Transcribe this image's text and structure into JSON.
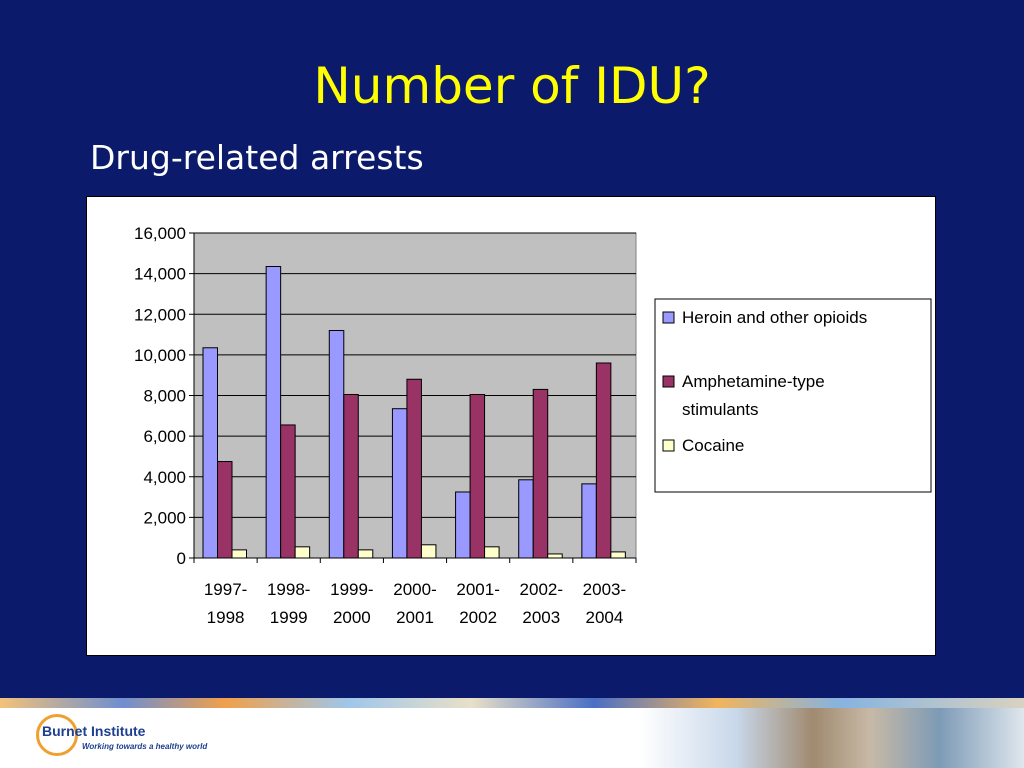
{
  "slide": {
    "title": "Number of IDU?",
    "subtitle": "Drug-related arrests"
  },
  "chart_data": {
    "type": "bar",
    "categories": [
      [
        "1997-",
        "1998"
      ],
      [
        "1998-",
        "1999"
      ],
      [
        "1999-",
        "2000"
      ],
      [
        "2000-",
        "2001"
      ],
      [
        "2001-",
        "2002"
      ],
      [
        "2002-",
        "2003"
      ],
      [
        "2003-",
        "2004"
      ]
    ],
    "series": [
      {
        "name": "Heroin and other opioids",
        "color": "#9999ff",
        "values": [
          10350,
          14350,
          11200,
          7350,
          3250,
          3850,
          3650
        ]
      },
      {
        "name": [
          "Amphetamine-type",
          "stimulants"
        ],
        "color": "#993366",
        "values": [
          4750,
          6550,
          8050,
          8800,
          8050,
          8300,
          9600
        ]
      },
      {
        "name": "Cocaine",
        "color": "#ffffcc",
        "values": [
          400,
          550,
          400,
          650,
          550,
          200,
          300
        ]
      }
    ],
    "y_ticks": [
      "0",
      "2,000",
      "4,000",
      "6,000",
      "8,000",
      "10,000",
      "12,000",
      "14,000",
      "16,000"
    ],
    "ylim": [
      0,
      16000
    ],
    "grid": true,
    "plot_background": "#c0c0c0",
    "legend_position": "right",
    "title": "",
    "xlabel": "",
    "ylabel": ""
  },
  "footer": {
    "logo_name": "Burnet Institute",
    "tagline": "Working towards a healthy world"
  }
}
